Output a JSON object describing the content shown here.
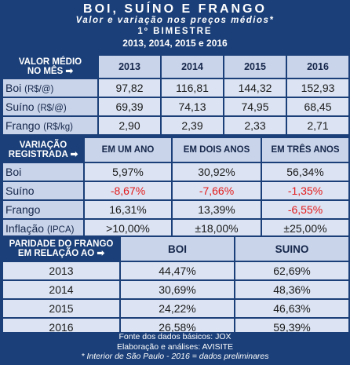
{
  "header": {
    "title": "BOI, SUÍNO E FRANGO",
    "subtitle": "Valor e variação nos preços médios*",
    "period": "1º BIMESTRE",
    "years": "2013, 2014, 2015 e 2016"
  },
  "valor_medio": {
    "label_line1": "VALOR MÉDIO",
    "label_line2": "NO MÊS ➡",
    "years": [
      "2013",
      "2014",
      "2015",
      "2016"
    ],
    "rows": [
      {
        "name": "Boi",
        "unit": "(R$/@)",
        "values": [
          "97,82",
          "116,81",
          "144,32",
          "152,93"
        ]
      },
      {
        "name": "Suíno",
        "unit": "(R$/@)",
        "values": [
          "69,39",
          "74,13",
          "74,95",
          "68,45"
        ]
      },
      {
        "name": "Frango",
        "unit": "(R$/kg)",
        "values": [
          "2,90",
          "2,39",
          "2,33",
          "2,71"
        ]
      }
    ]
  },
  "variacao": {
    "label_line1": "VARIAÇÃO",
    "label_line2": "REGISTRADA ➡",
    "headers": [
      "EM UM ANO",
      "EM DOIS ANOS",
      "EM TRÊS ANOS"
    ],
    "rows": [
      {
        "name": "Boi",
        "unit": "",
        "values": [
          "5,97%",
          "30,92%",
          "56,34%"
        ]
      },
      {
        "name": "Suíno",
        "unit": "",
        "values": [
          "-8,67%",
          "-7,66%",
          "-1,35%"
        ]
      },
      {
        "name": "Frango",
        "unit": "",
        "values": [
          "16,31%",
          "13,39%",
          "-6,55%"
        ]
      },
      {
        "name": "Inflação",
        "unit": "(IPCA)",
        "values": [
          ">10,00%",
          "±18,00%",
          "±25,00%"
        ]
      }
    ]
  },
  "paridade": {
    "label_line1": "PARIDADE DO FRANGO",
    "label_line2": "EM RELAÇÃO AO ➡",
    "headers": [
      "BOI",
      "SUINO"
    ],
    "rows": [
      {
        "year": "2013",
        "values": [
          "44,47%",
          "62,69%"
        ]
      },
      {
        "year": "2014",
        "values": [
          "30,69%",
          "48,36%"
        ]
      },
      {
        "year": "2015",
        "values": [
          "24,22%",
          "46,63%"
        ]
      },
      {
        "year": "2016",
        "values": [
          "26,58%",
          "59,39%"
        ]
      }
    ]
  },
  "footer": {
    "line1": "Fonte dos dados básicos: JOX",
    "line2": "Elaboração e análises: AVISITE",
    "line3": "* Interior de São Paulo  -  2016 = dados preliminares"
  },
  "colors": {
    "navy": "#1b3f78",
    "light": "#dce4f3",
    "header_cell": "#c9d4ea",
    "negative": "#e31b1b"
  }
}
